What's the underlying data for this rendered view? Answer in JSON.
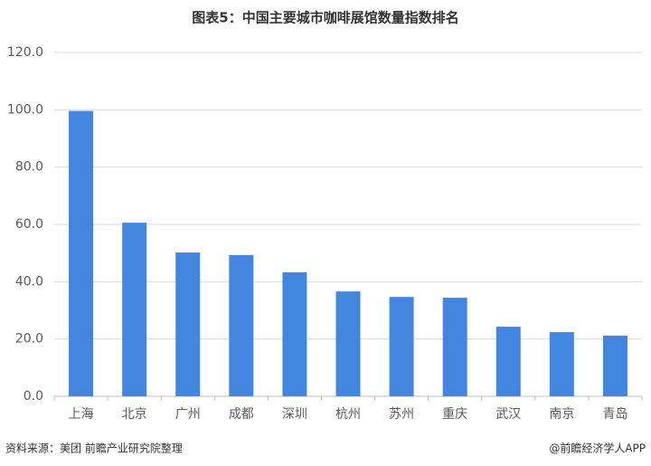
{
  "chart_data": {
    "type": "bar",
    "title": "图表5：中国主要城市咖啡展馆数量指数排名",
    "categories": [
      "上海",
      "北京",
      "广州",
      "成都",
      "深圳",
      "杭州",
      "苏州",
      "重庆",
      "武汉",
      "南京",
      "青岛"
    ],
    "values": [
      99.6,
      60.6,
      50.2,
      49.3,
      43.3,
      36.6,
      34.7,
      34.4,
      24.3,
      22.4,
      21.2
    ],
    "color": "#4286e0",
    "ylim": [
      0,
      120
    ],
    "yticks": [
      {
        "value": 0,
        "label": "0.0"
      },
      {
        "value": 20,
        "label": "20.0"
      },
      {
        "value": 40,
        "label": "40.0"
      },
      {
        "value": 60,
        "label": "60.0"
      },
      {
        "value": 80,
        "label": "80.0"
      },
      {
        "value": 100,
        "label": "100.0"
      },
      {
        "value": 120,
        "label": "120.0"
      }
    ],
    "grid": true,
    "source": "资料来源：美团 前瞻产业研究院整理",
    "credit": "@前瞻经济学人APP"
  }
}
